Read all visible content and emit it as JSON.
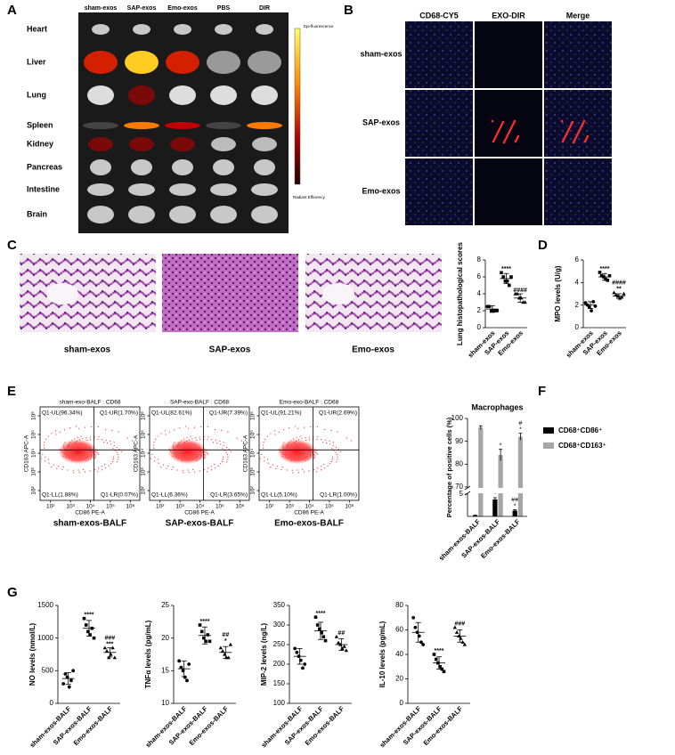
{
  "figure": {
    "panel_labels": [
      "A",
      "B",
      "C",
      "D",
      "E",
      "F",
      "G"
    ],
    "a": {
      "columns": [
        "sham-exos",
        "SAP-exos",
        "Emo-exos",
        "PBS",
        "DIR"
      ],
      "rows": [
        "Heart",
        "Liver",
        "Lung",
        "Spleen",
        "Kidney",
        "Pancreas",
        "Intestine",
        "Brain"
      ],
      "colorbar_title": "Epi-fluorescence",
      "colorbar_label": "Radiant Efficiency"
    },
    "b": {
      "columns": [
        "CD68-CY5",
        "EXO-DIR",
        "Merge"
      ],
      "rows": [
        "sham-exos",
        "SAP-exos",
        "Emo-exos"
      ]
    },
    "c": {
      "captions": [
        "sham-exos",
        "SAP-exos",
        "Emo-exos"
      ]
    },
    "e": {
      "captions": [
        "sham-exos-BALF",
        "SAP-exos-BALF",
        "Emo-exos-BALF"
      ]
    }
  },
  "chart_data": [
    {
      "type": "dot",
      "ylabel": "Lung histopathological scores",
      "categories": [
        "sham-exos",
        "SAP-exos",
        "Emo-exos"
      ],
      "markers": [
        "circle",
        "square",
        "triangle"
      ],
      "points": [
        [
          2.5,
          2.5,
          2,
          2,
          2,
          2
        ],
        [
          6.5,
          6,
          5.5,
          5.5,
          5,
          6
        ],
        [
          4,
          4,
          3.5,
          3.5,
          3,
          3
        ]
      ],
      "means": [
        2.2,
        5.8,
        3.5
      ],
      "sd": [
        0.4,
        0.6,
        0.5
      ],
      "annotations": [
        [],
        [
          "****"
        ],
        [
          "####"
        ]
      ],
      "ylim": [
        0,
        8
      ],
      "yticks": [
        0,
        2,
        4,
        6,
        8
      ]
    },
    {
      "type": "dot",
      "ylabel": "MPO levels (U/g)",
      "categories": [
        "sham-exos",
        "SAP-exos",
        "Emo-exos"
      ],
      "markers": [
        "circle",
        "square",
        "triangle"
      ],
      "points": [
        [
          2.2,
          2,
          1.8,
          1.5,
          2.3,
          1.9
        ],
        [
          4.9,
          4.6,
          4.5,
          4.3,
          4.2,
          4.6
        ],
        [
          3.1,
          2.9,
          2.8,
          2.6,
          2.7,
          3
        ]
      ],
      "means": [
        2,
        4.5,
        2.8
      ],
      "sd": [
        0.3,
        0.3,
        0.2
      ],
      "annotations": [
        [],
        [
          "****"
        ],
        [
          "####",
          "**"
        ]
      ],
      "ylim": [
        0,
        6
      ],
      "yticks": [
        0,
        2,
        4,
        6
      ]
    },
    {
      "type": "flow",
      "title": "sham-exo-BALF : CD68",
      "xlabel": "CD86 PE-A",
      "ylabel": "CD163 APC-A",
      "log": true,
      "xlim": [
        30,
        3000000
      ],
      "ylim": [
        30,
        3000000
      ],
      "xticks": [
        {
          "value": 100,
          "label": "10²"
        },
        {
          "value": 1000,
          "label": "10³"
        },
        {
          "value": 10000,
          "label": "10⁴"
        },
        {
          "value": 100000,
          "label": "10⁵"
        },
        {
          "value": 1000000,
          "label": "10⁶"
        }
      ],
      "yticks": [
        {
          "value": 100,
          "label": "10²"
        },
        {
          "value": 1000,
          "label": "10³"
        },
        {
          "value": 10000,
          "label": "10⁴"
        },
        {
          "value": 100000,
          "label": "10⁵"
        },
        {
          "value": 1000000,
          "label": "10⁶"
        }
      ],
      "gate": [
        15000,
        15000
      ],
      "color": "#ff2a2a",
      "quadrants": {
        "UL": "Q1-UL(96.34%)",
        "UR": "Q1-UR(1.70%)",
        "LL": "Q1-LL(1.88%)",
        "LR": "Q1-LR(0.07%)"
      }
    },
    {
      "type": "flow",
      "title": "SAP-exo-BALF : CD68",
      "xlabel": "CD86 PE-A",
      "ylabel": "CD163 APC-A",
      "log": true,
      "xlim": [
        30,
        3000000
      ],
      "ylim": [
        30,
        3000000
      ],
      "xticks": [
        {
          "value": 100,
          "label": "10²"
        },
        {
          "value": 1000,
          "label": "10³"
        },
        {
          "value": 10000,
          "label": "10⁴"
        },
        {
          "value": 100000,
          "label": "10⁵"
        },
        {
          "value": 1000000,
          "label": "10⁶"
        }
      ],
      "yticks": [
        {
          "value": 100,
          "label": "10²"
        },
        {
          "value": 1000,
          "label": "10³"
        },
        {
          "value": 10000,
          "label": "10⁴"
        },
        {
          "value": 100000,
          "label": "10⁵"
        },
        {
          "value": 1000000,
          "label": "10⁶"
        }
      ],
      "gate": [
        15000,
        15000
      ],
      "color": "#ff2a2a",
      "quadrants": {
        "UL": "Q1-UL(82.61%)",
        "UR": "Q1-UR(7.39%)",
        "LL": "Q1-LL(6.36%)",
        "LR": "Q1-LR(3.65%)"
      }
    },
    {
      "type": "flow",
      "title": "Emo-exo-BALF : CD68",
      "xlabel": "CD86 PE-A",
      "ylabel": "CD163 APC-A",
      "log": true,
      "xlim": [
        30,
        3000000
      ],
      "ylim": [
        30,
        3000000
      ],
      "xticks": [
        {
          "value": 100,
          "label": "10²"
        },
        {
          "value": 1000,
          "label": "10³"
        },
        {
          "value": 10000,
          "label": "10⁴"
        },
        {
          "value": 100000,
          "label": "10⁵"
        },
        {
          "value": 1000000,
          "label": "10⁶"
        }
      ],
      "yticks": [
        {
          "value": 100,
          "label": "10²"
        },
        {
          "value": 1000,
          "label": "10³"
        },
        {
          "value": 10000,
          "label": "10⁴"
        },
        {
          "value": 100000,
          "label": "10⁵"
        },
        {
          "value": 1000000,
          "label": "10⁶"
        }
      ],
      "gate": [
        15000,
        15000
      ],
      "color": "#ff2a2a",
      "quadrants": {
        "UL": "Q1-UL(91.21%)",
        "UR": "Q1-UR(2.69%)",
        "LL": "Q1-LL(5.10%)",
        "LR": "Q1-LR(1.00%)"
      }
    },
    {
      "type": "bar",
      "title": "Macrophages",
      "ylabel": "Percentage of positive cells (%)",
      "categories": [
        "sham-exos-BALF",
        "SAP-exos-BALF",
        "Emo-exos-BALF"
      ],
      "series": [
        {
          "name": "CD68⁺CD86⁺",
          "color": "#000000",
          "values": [
            0.2,
            3.8,
            1.3
          ],
          "errors": [
            0.1,
            0.4,
            0.2
          ],
          "annotations": [
            [],
            [
              "*"
            ],
            [
              "##",
              "*"
            ]
          ]
        },
        {
          "name": "CD68⁺CD163⁺",
          "color": "#a6a6a6",
          "values": [
            96,
            84,
            92
          ],
          "errors": [
            0.8,
            2.5,
            1.5
          ],
          "annotations": [
            [],
            [
              "*"
            ],
            [
              "#",
              "*"
            ]
          ]
        }
      ],
      "ylim": [
        0,
        100
      ],
      "axis_break": [
        5,
        70
      ],
      "yticks": [
        5,
        70,
        80,
        90,
        100
      ],
      "legend": "right"
    },
    {
      "type": "dot",
      "ylabel": "NO levels (nmol/L)",
      "categories": [
        "sham-exos-BALF",
        "SAP-exos-BALF",
        "Emo-exos-BALF"
      ],
      "markers": [
        "circle",
        "square",
        "triangle"
      ],
      "points": [
        [
          300,
          450,
          400,
          250,
          350,
          500
        ],
        [
          1300,
          1200,
          1100,
          1050,
          1150,
          1000
        ],
        [
          850,
          800,
          700,
          750,
          850,
          700
        ]
      ],
      "means": [
        380,
        1150,
        780
      ],
      "sd": [
        90,
        120,
        70
      ],
      "annotations": [
        [],
        [
          "****"
        ],
        [
          "###",
          "***"
        ]
      ],
      "ylim": [
        0,
        1500
      ],
      "yticks": [
        0,
        500,
        1000,
        1500
      ]
    },
    {
      "type": "dot",
      "ylabel": "TNFα levels (pg/mL)",
      "categories": [
        "sham-exos-BALF",
        "SAP-exos-BALF",
        "Emo-exos-BALF"
      ],
      "markers": [
        "circle",
        "square",
        "triangle"
      ],
      "points": [
        [
          16.5,
          15.5,
          15,
          14,
          13.5,
          16
        ],
        [
          22,
          21,
          20,
          19.5,
          20.5,
          19.5
        ],
        [
          18.5,
          18,
          17.5,
          17,
          17,
          19
        ]
      ],
      "means": [
        15.3,
        20.4,
        17.8
      ],
      "sd": [
        1.2,
        1.3,
        0.9
      ],
      "annotations": [
        [],
        [
          "****"
        ],
        [
          "##",
          "*"
        ]
      ],
      "ylim": [
        10,
        25
      ],
      "yticks": [
        10,
        15,
        20,
        25
      ]
    },
    {
      "type": "dot",
      "ylabel": "MIP-2 levels (ng/L)",
      "categories": [
        "sham-exos-BALF",
        "SAP-exos-BALF",
        "Emo-exos-BALF"
      ],
      "markers": [
        "circle",
        "square",
        "triangle"
      ],
      "points": [
        [
          240,
          230,
          220,
          210,
          190,
          200
        ],
        [
          320,
          300,
          290,
          280,
          270,
          260
        ],
        [
          270,
          255,
          250,
          240,
          245,
          235
        ]
      ],
      "means": [
        220,
        285,
        250
      ],
      "sd": [
        20,
        22,
        15
      ],
      "annotations": [
        [],
        [
          "****"
        ],
        [
          "##"
        ]
      ],
      "ylim": [
        100,
        350
      ],
      "yticks": [
        100,
        150,
        200,
        250,
        300,
        350
      ]
    },
    {
      "type": "dot",
      "ylabel": "IL-10 levels (pg/mL)",
      "categories": [
        "sham-exos-BALF",
        "SAP-exos-BALF",
        "Emo-exos-BALF"
      ],
      "markers": [
        "circle",
        "square",
        "triangle"
      ],
      "points": [
        [
          70,
          62,
          58,
          55,
          50,
          48
        ],
        [
          40,
          36,
          33,
          30,
          28,
          26
        ],
        [
          62,
          58,
          55,
          53,
          50,
          48
        ]
      ],
      "means": [
        58,
        33,
        55
      ],
      "sd": [
        8,
        5,
        5
      ],
      "annotations": [
        [],
        [
          "****"
        ],
        [
          "###"
        ]
      ],
      "ylim": [
        0,
        80
      ],
      "yticks": [
        0,
        20,
        40,
        60,
        80
      ]
    }
  ]
}
